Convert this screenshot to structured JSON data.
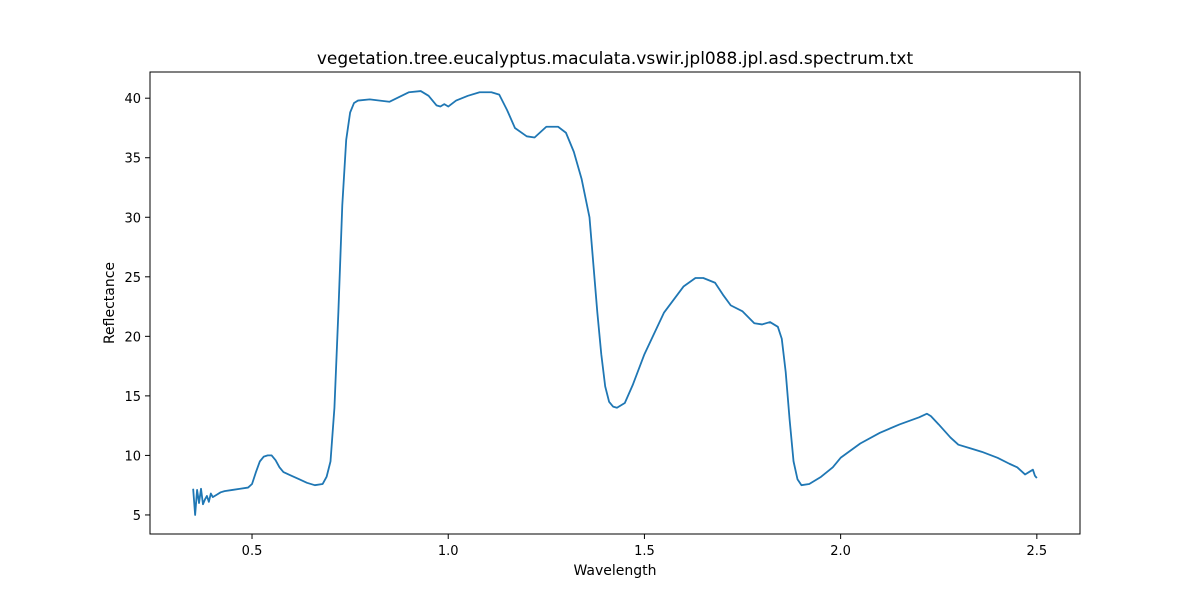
{
  "chart_data": {
    "type": "line",
    "title": "vegetation.tree.eucalyptus.maculata.vswir.jpl088.jpl.asd.spectrum.txt",
    "xlabel": "Wavelength",
    "ylabel": "Reflectance",
    "xlim": [
      0.24,
      2.61
    ],
    "ylim": [
      3.4,
      42.2
    ],
    "xticks": [
      0.5,
      1.0,
      1.5,
      2.0,
      2.5
    ],
    "xtick_labels": [
      "0.5",
      "1.0",
      "1.5",
      "2.0",
      "2.5"
    ],
    "yticks": [
      5,
      10,
      15,
      20,
      25,
      30,
      35,
      40
    ],
    "ytick_labels": [
      "5",
      "10",
      "15",
      "20",
      "25",
      "30",
      "35",
      "40"
    ],
    "grid": false,
    "line_color": "#1f77b4",
    "series": [
      {
        "x": [
          0.35,
          0.355,
          0.36,
          0.365,
          0.37,
          0.375,
          0.38,
          0.385,
          0.39,
          0.395,
          0.4,
          0.41,
          0.42,
          0.43,
          0.45,
          0.47,
          0.49,
          0.5,
          0.51,
          0.52,
          0.53,
          0.54,
          0.55,
          0.56,
          0.57,
          0.58,
          0.6,
          0.62,
          0.64,
          0.66,
          0.68,
          0.69,
          0.7,
          0.71,
          0.72,
          0.73,
          0.74,
          0.75,
          0.76,
          0.77,
          0.8,
          0.85,
          0.9,
          0.93,
          0.95,
          0.97,
          0.98,
          0.99,
          1.0,
          1.02,
          1.05,
          1.08,
          1.11,
          1.13,
          1.15,
          1.17,
          1.2,
          1.22,
          1.25,
          1.28,
          1.3,
          1.32,
          1.34,
          1.36,
          1.37,
          1.38,
          1.39,
          1.4,
          1.41,
          1.42,
          1.43,
          1.45,
          1.47,
          1.5,
          1.55,
          1.6,
          1.63,
          1.65,
          1.68,
          1.7,
          1.72,
          1.75,
          1.78,
          1.8,
          1.82,
          1.84,
          1.85,
          1.86,
          1.87,
          1.88,
          1.89,
          1.9,
          1.92,
          1.95,
          1.98,
          2.0,
          2.05,
          2.1,
          2.15,
          2.2,
          2.22,
          2.23,
          2.25,
          2.28,
          2.3,
          2.33,
          2.36,
          2.4,
          2.43,
          2.45,
          2.47,
          2.48,
          2.49,
          2.495,
          2.5
        ],
        "y": [
          7.2,
          5.0,
          7.1,
          6.0,
          7.2,
          5.9,
          6.3,
          6.6,
          6.1,
          6.8,
          6.5,
          6.7,
          6.9,
          7.0,
          7.1,
          7.2,
          7.3,
          7.6,
          8.6,
          9.5,
          9.9,
          10.0,
          10.0,
          9.6,
          9.0,
          8.6,
          8.3,
          8.0,
          7.7,
          7.5,
          7.6,
          8.2,
          9.5,
          14.0,
          22.0,
          31.0,
          36.5,
          38.8,
          39.6,
          39.8,
          39.9,
          39.7,
          40.5,
          40.6,
          40.2,
          39.4,
          39.3,
          39.5,
          39.3,
          39.8,
          40.2,
          40.5,
          40.5,
          40.3,
          39.0,
          37.5,
          36.8,
          36.7,
          37.6,
          37.6,
          37.1,
          35.5,
          33.2,
          30.0,
          26.0,
          22.0,
          18.5,
          15.8,
          14.5,
          14.1,
          14.0,
          14.4,
          15.9,
          18.5,
          22.0,
          24.2,
          24.9,
          24.9,
          24.5,
          23.5,
          22.6,
          22.1,
          21.1,
          21.0,
          21.2,
          20.8,
          19.8,
          17.0,
          13.0,
          9.5,
          8.0,
          7.5,
          7.6,
          8.2,
          9.0,
          9.8,
          11.0,
          11.9,
          12.6,
          13.2,
          13.5,
          13.3,
          12.6,
          11.5,
          10.9,
          10.6,
          10.3,
          9.8,
          9.3,
          9.0,
          8.4,
          8.6,
          8.8,
          8.3,
          8.1
        ]
      }
    ]
  }
}
